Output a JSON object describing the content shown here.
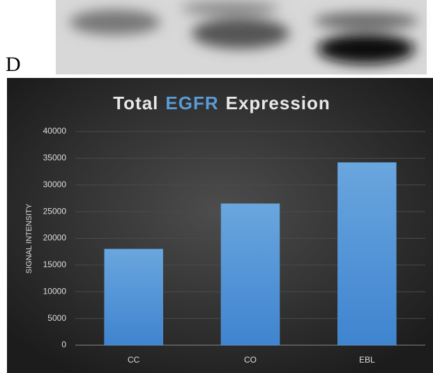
{
  "panel_label": "D",
  "chart_data": {
    "type": "bar",
    "title": [
      "Total",
      "EGFR",
      "Expression"
    ],
    "title_highlight": 1,
    "title_highlight_color": "#5b9bd5",
    "ylabel": "SIGNAL INTENSITY",
    "categories": [
      "CC",
      "CO",
      "EBL"
    ],
    "values": [
      18000,
      26500,
      34200
    ],
    "color": "#5b9bd5",
    "ylim": [
      0,
      40000
    ],
    "yticks": [
      0,
      5000,
      10000,
      15000,
      20000,
      25000,
      30000,
      35000,
      40000
    ],
    "grid": true
  }
}
